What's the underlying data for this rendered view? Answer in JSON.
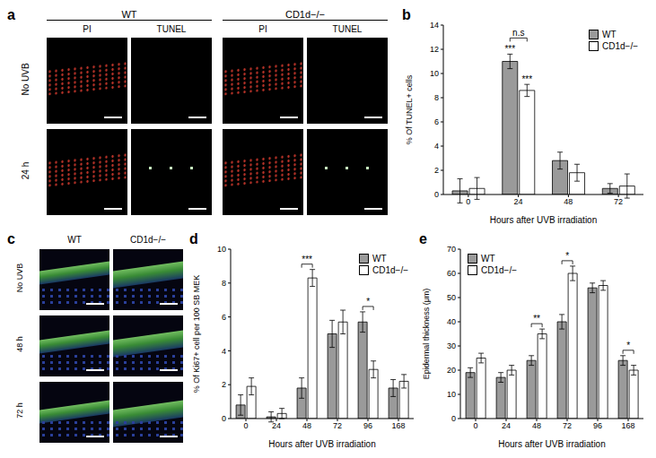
{
  "panels": {
    "a": {
      "label": "a",
      "groups": [
        {
          "title": "WT",
          "columns": [
            "PI",
            "TUNEL"
          ]
        },
        {
          "title": "CD1d−/−",
          "columns": [
            "PI",
            "TUNEL"
          ]
        }
      ],
      "rows": [
        "No UVB",
        "24 h"
      ]
    },
    "c": {
      "label": "c",
      "columns": [
        "WT",
        "CD1d−/−"
      ],
      "rows": [
        "No UVB",
        "48 h",
        "72 h"
      ]
    }
  },
  "chart_data": [
    {
      "panel": "b",
      "type": "bar",
      "x_label": "Hours after UVB irradiation",
      "y_label": "% Of TUNEL+ cells",
      "categories": [
        "0",
        "24",
        "48",
        "72"
      ],
      "series": [
        {
          "name": "WT",
          "color": "#9a9a9a",
          "values": [
            0.3,
            11,
            2.8,
            0.5
          ],
          "errors": [
            1.0,
            0.6,
            0.7,
            0.4
          ]
        },
        {
          "name": "CD1d−/−",
          "color": "#ffffff",
          "values": [
            0.5,
            8.6,
            1.8,
            0.7
          ],
          "errors": [
            0.9,
            0.5,
            0.7,
            1.0
          ]
        }
      ],
      "ylim": [
        0,
        14
      ],
      "yticks": [
        0,
        2,
        4,
        6,
        8,
        10,
        12,
        14
      ],
      "legend": "upper right",
      "annotations": [
        {
          "category": "24",
          "series": "WT",
          "text": "***"
        },
        {
          "category": "24",
          "series": "CD1d−/−",
          "text": "***"
        },
        {
          "category": "24",
          "text": "n.s"
        }
      ]
    },
    {
      "panel": "d",
      "type": "bar",
      "x_label": "Hours after UVB irradiation",
      "y_label": "% Of Ki67+ cell per 100 SB MEK",
      "categories": [
        "0",
        "24",
        "48",
        "72",
        "96",
        "168"
      ],
      "series": [
        {
          "name": "WT",
          "color": "#9a9a9a",
          "values": [
            0.8,
            0.1,
            1.8,
            5.0,
            5.7,
            1.8
          ],
          "errors": [
            0.6,
            0.3,
            0.6,
            0.8,
            0.6,
            0.5
          ]
        },
        {
          "name": "CD1d−/−",
          "color": "#ffffff",
          "values": [
            1.9,
            0.3,
            8.3,
            5.7,
            2.9,
            2.2
          ],
          "errors": [
            0.5,
            0.3,
            0.5,
            0.7,
            0.5,
            0.4
          ]
        }
      ],
      "ylim": [
        0,
        10
      ],
      "yticks": [
        0,
        2,
        4,
        6,
        8,
        10
      ],
      "legend": "upper right",
      "annotations": [
        {
          "category": "48",
          "text": "***"
        },
        {
          "category": "96",
          "text": "*"
        }
      ]
    },
    {
      "panel": "e",
      "type": "bar",
      "x_label": "Hours after UVB irradiation",
      "y_label": "Epidermal thickness (μm)",
      "categories": [
        "0",
        "24",
        "48",
        "72",
        "96",
        "168"
      ],
      "series": [
        {
          "name": "WT",
          "color": "#9a9a9a",
          "values": [
            19,
            17,
            24,
            40,
            54,
            24
          ],
          "errors": [
            2,
            2,
            2,
            3,
            2,
            2
          ]
        },
        {
          "name": "CD1d−/−",
          "color": "#ffffff",
          "values": [
            25,
            20,
            35,
            60,
            55,
            20
          ],
          "errors": [
            2,
            2,
            2,
            3,
            2,
            2
          ]
        }
      ],
      "ylim": [
        0,
        70
      ],
      "yticks": [
        0,
        10,
        20,
        30,
        40,
        50,
        60,
        70
      ],
      "legend": "upper left",
      "annotations": [
        {
          "category": "48",
          "text": "**"
        },
        {
          "category": "72",
          "text": "*"
        },
        {
          "category": "168",
          "text": "*"
        }
      ]
    }
  ]
}
